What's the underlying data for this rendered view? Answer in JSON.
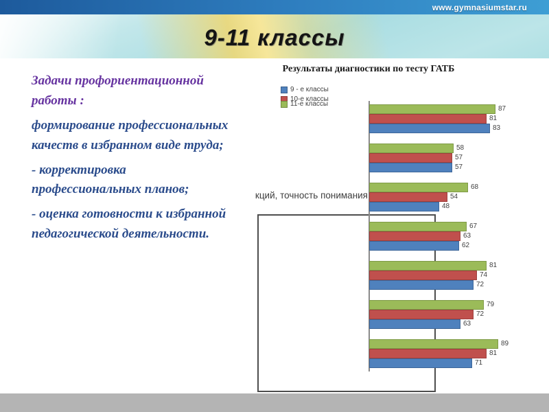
{
  "topbar": {
    "url": "www.gymnasiumstar.ru"
  },
  "slide_title": "9-11 классы",
  "tasks": {
    "heading": "Задачи профориентационной работы :",
    "items": [
      "формирование профессиональных качеств в избранном виде труда;",
      " - корректировка профессиональных планов;",
      " - оценка готовности к избранной педагогической деятельности."
    ]
  },
  "chart_data": {
    "type": "bar",
    "orientation": "horizontal",
    "title": "Результаты диагностики по тесту ГАТБ",
    "xlim": [
      0,
      100
    ],
    "legend_position": "top-left",
    "legend": [
      {
        "label": "9 - е классы",
        "color": "#4F81BD"
      },
      {
        "label": "10-е классы",
        "color": "#C0504D"
      },
      {
        "label": "11-е классы",
        "color": "#9BBB59"
      }
    ],
    "series": [
      {
        "name": "9 - е классы",
        "color": "#4F81BD",
        "border": "#3d6699",
        "values": [
          83,
          57,
          48,
          62,
          72,
          63,
          71
        ]
      },
      {
        "name": "10-е классы",
        "color": "#C0504D",
        "border": "#9e3f3c",
        "values": [
          81,
          57,
          54,
          63,
          74,
          72,
          81
        ]
      },
      {
        "name": "11-е классы",
        "color": "#9BBB59",
        "border": "#7e9a46",
        "values": [
          87,
          58,
          68,
          67,
          81,
          79,
          89
        ]
      }
    ],
    "bar_order_top_to_bottom": [
      2,
      1,
      0
    ],
    "groups_count": 7,
    "visible_category_label": "кций, точность понимания",
    "visible_category_group_index": 2
  }
}
